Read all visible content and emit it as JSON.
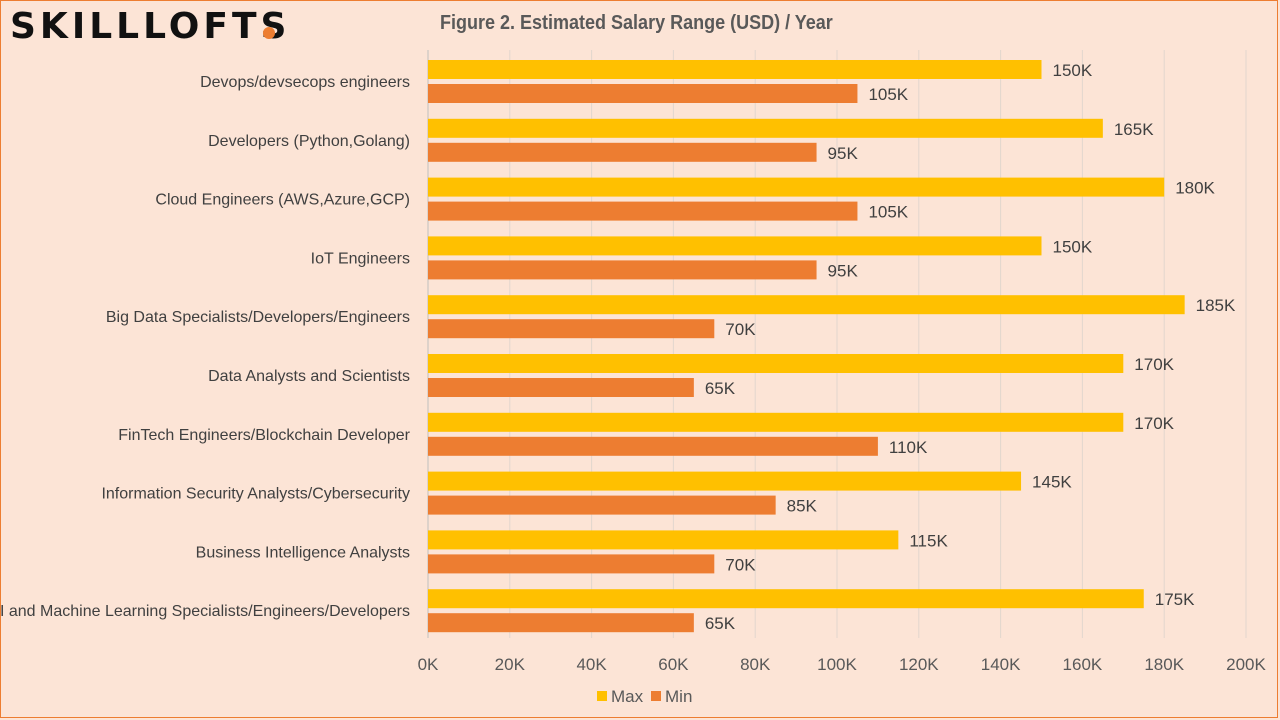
{
  "brand": {
    "logo_text": "SKILLLOFTS",
    "dot_color": "#ED7D31"
  },
  "chart_data": {
    "type": "bar",
    "orientation": "horizontal",
    "title": "Figure 2. Estimated Salary Range (USD) / Year",
    "categories": [
      "Devops/devsecops engineers",
      "Developers (Python,Golang)",
      "Cloud Engineers (AWS,Azure,GCP)",
      "IoT Engineers",
      "Big Data Specialists/Developers/Engineers",
      "Data Analysts and Scientists",
      "FinTech Engineers/Blockchain Developer",
      "Information Security Analysts/Cybersecurity",
      "Business Intelligence Analysts",
      "AI and Machine Learning Specialists/Engineers/Developers"
    ],
    "series": [
      {
        "name": "Max",
        "color": "#FFC000",
        "values": [
          150000,
          165000,
          180000,
          150000,
          185000,
          170000,
          170000,
          145000,
          115000,
          175000
        ],
        "labels": [
          "150K",
          "165K",
          "180K",
          "150K",
          "185K",
          "170K",
          "170K",
          "145K",
          "115K",
          "175K"
        ]
      },
      {
        "name": "Min",
        "color": "#ED7D31",
        "values": [
          105000,
          95000,
          105000,
          95000,
          70000,
          65000,
          110000,
          85000,
          70000,
          65000
        ],
        "labels": [
          "105K",
          "95K",
          "105K",
          "95K",
          "70K",
          "65K",
          "110K",
          "85K",
          "70K",
          "65K"
        ]
      }
    ],
    "xlim": [
      0,
      200000
    ],
    "xticks": [
      0,
      20000,
      40000,
      60000,
      80000,
      100000,
      120000,
      140000,
      160000,
      180000,
      200000
    ],
    "xtick_labels": [
      "0K",
      "20K",
      "40K",
      "60K",
      "80K",
      "100K",
      "120K",
      "140K",
      "160K",
      "180K",
      "200K"
    ],
    "grid": true,
    "legend_position": "bottom"
  }
}
